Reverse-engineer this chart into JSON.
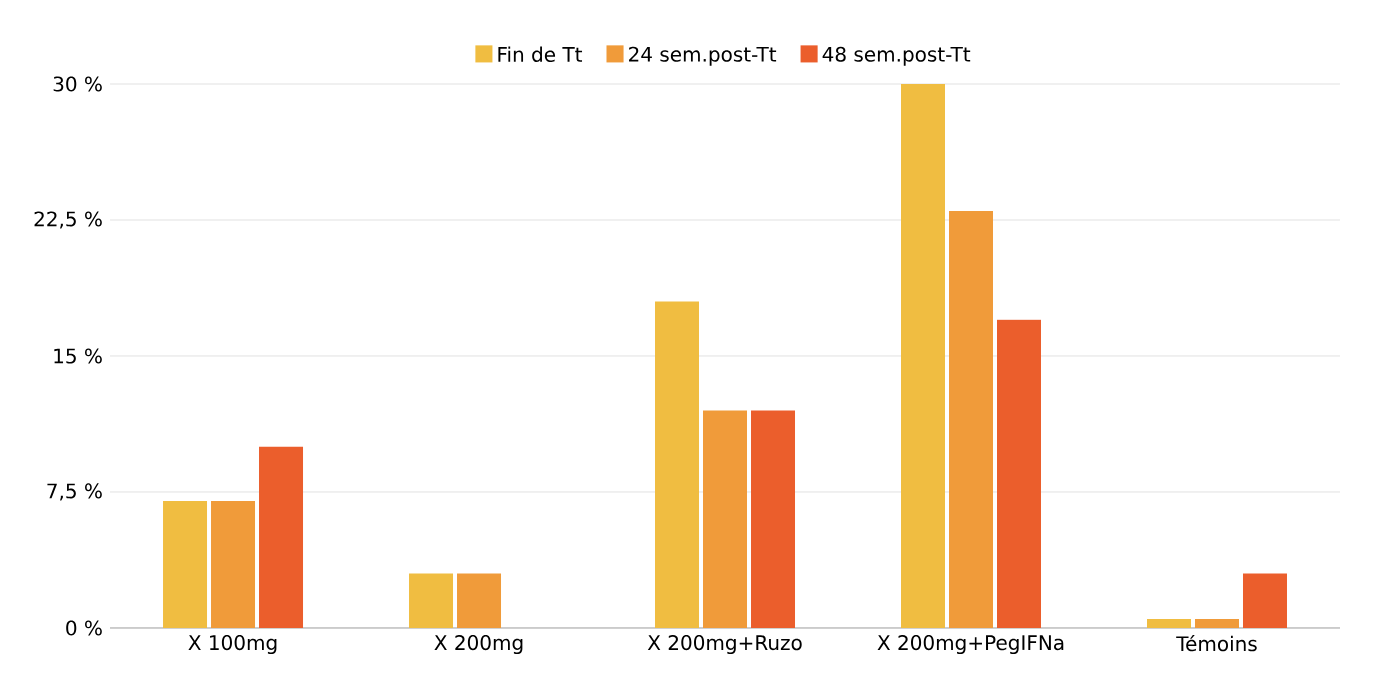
{
  "chart_data": {
    "type": "bar",
    "categories": [
      "X 100mg",
      "X 200mg",
      "X 200mg+Ruzo",
      "X 200mg+PegIFNa",
      "Témoins"
    ],
    "series": [
      {
        "name": "Fin de Tt",
        "color": "#f0bd41",
        "values": [
          7,
          3,
          18,
          30,
          0.5
        ]
      },
      {
        "name": "24 sem.post-Tt",
        "color": "#f09b3a",
        "values": [
          7,
          3,
          12,
          23,
          0.5
        ]
      },
      {
        "name": "48 sem.post-Tt",
        "color": "#eb5e2c",
        "values": [
          10,
          null,
          12,
          17,
          3
        ]
      }
    ],
    "ylim": [
      0,
      30
    ],
    "yticks": [
      {
        "value": 0,
        "label": "0 %"
      },
      {
        "value": 7.5,
        "label": "7,5 %"
      },
      {
        "value": 15,
        "label": "15 %"
      },
      {
        "value": 22.5,
        "label": "22,5 %"
      },
      {
        "value": 30,
        "label": "30 %"
      }
    ],
    "grid": "y",
    "legend": "top"
  }
}
